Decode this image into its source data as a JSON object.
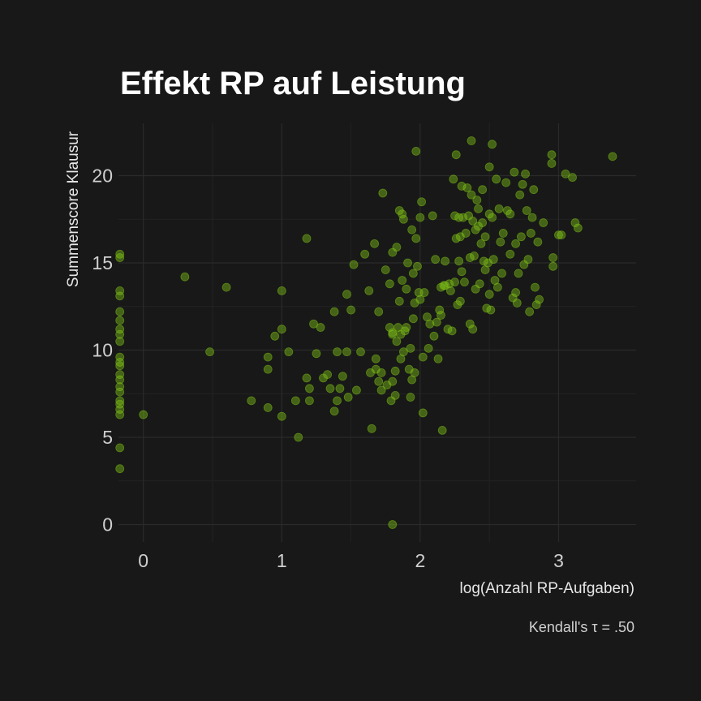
{
  "chart_data": {
    "type": "scatter",
    "title": "Effekt RP auf Leistung",
    "xlabel": "log(Anzahl RP-Aufgaben)",
    "ylabel": "Summenscore Klausur",
    "caption": "Kendall's τ = .50",
    "xlim": [
      -0.18,
      3.56
    ],
    "ylim": [
      -1.0,
      23.0
    ],
    "xticks": [
      0,
      1,
      2,
      3
    ],
    "yticks": [
      0,
      5,
      10,
      15,
      20
    ],
    "grid": true,
    "colors": {
      "background": "#181818",
      "point": "#7cbf16",
      "grid_major": "#2a2a2a",
      "grid_minor": "#222222"
    },
    "points": [
      [
        -0.17,
        15.5
      ],
      [
        -0.17,
        15.3
      ],
      [
        -0.17,
        13.4
      ],
      [
        -0.17,
        13.1
      ],
      [
        -0.17,
        12.2
      ],
      [
        -0.17,
        11.7
      ],
      [
        -0.17,
        11.2
      ],
      [
        -0.17,
        10.9
      ],
      [
        -0.17,
        10.5
      ],
      [
        -0.17,
        9.6
      ],
      [
        -0.17,
        9.3
      ],
      [
        -0.17,
        9.1
      ],
      [
        -0.17,
        8.6
      ],
      [
        -0.17,
        8.3
      ],
      [
        -0.17,
        7.9
      ],
      [
        -0.17,
        7.6
      ],
      [
        -0.17,
        7.1
      ],
      [
        -0.17,
        6.9
      ],
      [
        -0.17,
        6.6
      ],
      [
        -0.17,
        6.3
      ],
      [
        -0.17,
        4.4
      ],
      [
        -0.17,
        3.2
      ],
      [
        0.0,
        6.3
      ],
      [
        0.3,
        14.2
      ],
      [
        0.48,
        9.9
      ],
      [
        0.6,
        13.6
      ],
      [
        0.78,
        7.1
      ],
      [
        0.9,
        9.6
      ],
      [
        0.9,
        8.9
      ],
      [
        0.9,
        6.7
      ],
      [
        0.95,
        10.8
      ],
      [
        1.0,
        13.4
      ],
      [
        1.0,
        11.2
      ],
      [
        1.0,
        6.2
      ],
      [
        1.05,
        9.9
      ],
      [
        1.1,
        7.1
      ],
      [
        1.12,
        5.0
      ],
      [
        1.18,
        16.4
      ],
      [
        1.18,
        8.4
      ],
      [
        1.2,
        7.8
      ],
      [
        1.2,
        7.1
      ],
      [
        1.23,
        11.5
      ],
      [
        1.25,
        9.8
      ],
      [
        1.28,
        11.3
      ],
      [
        1.3,
        8.4
      ],
      [
        1.33,
        8.6
      ],
      [
        1.35,
        7.8
      ],
      [
        1.38,
        6.5
      ],
      [
        1.38,
        12.2
      ],
      [
        1.4,
        9.9
      ],
      [
        1.4,
        7.1
      ],
      [
        1.42,
        7.8
      ],
      [
        1.44,
        8.5
      ],
      [
        1.47,
        9.9
      ],
      [
        1.47,
        13.2
      ],
      [
        1.48,
        7.3
      ],
      [
        1.5,
        12.3
      ],
      [
        1.52,
        14.9
      ],
      [
        1.54,
        7.7
      ],
      [
        1.57,
        9.9
      ],
      [
        1.6,
        15.5
      ],
      [
        1.63,
        13.4
      ],
      [
        1.64,
        8.7
      ],
      [
        1.65,
        5.5
      ],
      [
        1.67,
        16.1
      ],
      [
        1.68,
        8.9
      ],
      [
        1.68,
        9.5
      ],
      [
        1.7,
        12.2
      ],
      [
        1.7,
        8.2
      ],
      [
        1.72,
        8.7
      ],
      [
        1.72,
        7.7
      ],
      [
        1.73,
        19.0
      ],
      [
        1.75,
        14.6
      ],
      [
        1.76,
        8.0
      ],
      [
        1.78,
        11.3
      ],
      [
        1.78,
        13.8
      ],
      [
        1.79,
        7.1
      ],
      [
        1.8,
        15.6
      ],
      [
        1.8,
        11.0
      ],
      [
        1.8,
        10.9
      ],
      [
        1.8,
        8.2
      ],
      [
        1.8,
        0.0
      ],
      [
        1.82,
        8.8
      ],
      [
        1.82,
        7.4
      ],
      [
        1.83,
        10.5
      ],
      [
        1.83,
        15.9
      ],
      [
        1.84,
        11.3
      ],
      [
        1.85,
        18.0
      ],
      [
        1.85,
        12.8
      ],
      [
        1.86,
        10.9
      ],
      [
        1.86,
        9.5
      ],
      [
        1.87,
        17.8
      ],
      [
        1.87,
        14.0
      ],
      [
        1.88,
        17.5
      ],
      [
        1.88,
        9.9
      ],
      [
        1.89,
        11.1
      ],
      [
        1.9,
        13.5
      ],
      [
        1.9,
        11.3
      ],
      [
        1.91,
        15.0
      ],
      [
        1.92,
        8.9
      ],
      [
        1.93,
        7.3
      ],
      [
        1.93,
        10.1
      ],
      [
        1.94,
        16.9
      ],
      [
        1.94,
        8.3
      ],
      [
        1.95,
        11.8
      ],
      [
        1.95,
        14.4
      ],
      [
        1.96,
        12.7
      ],
      [
        1.96,
        8.7
      ],
      [
        1.97,
        21.4
      ],
      [
        1.97,
        16.4
      ],
      [
        1.98,
        14.8
      ],
      [
        1.99,
        13.3
      ],
      [
        2.0,
        17.6
      ],
      [
        2.0,
        12.9
      ],
      [
        2.01,
        18.5
      ],
      [
        2.02,
        9.6
      ],
      [
        2.02,
        6.4
      ],
      [
        2.03,
        13.3
      ],
      [
        2.05,
        11.9
      ],
      [
        2.06,
        10.1
      ],
      [
        2.07,
        11.5
      ],
      [
        2.09,
        17.7
      ],
      [
        2.1,
        10.8
      ],
      [
        2.11,
        15.2
      ],
      [
        2.12,
        11.6
      ],
      [
        2.13,
        9.5
      ],
      [
        2.14,
        12.3
      ],
      [
        2.15,
        12.0
      ],
      [
        2.15,
        13.6
      ],
      [
        2.16,
        5.4
      ],
      [
        2.17,
        13.7
      ],
      [
        2.18,
        15.1
      ],
      [
        2.18,
        13.7
      ],
      [
        2.2,
        11.2
      ],
      [
        2.21,
        13.8
      ],
      [
        2.22,
        13.4
      ],
      [
        2.23,
        11.1
      ],
      [
        2.24,
        19.8
      ],
      [
        2.25,
        17.7
      ],
      [
        2.25,
        13.9
      ],
      [
        2.26,
        21.2
      ],
      [
        2.26,
        16.4
      ],
      [
        2.27,
        12.6
      ],
      [
        2.28,
        17.6
      ],
      [
        2.28,
        15.1
      ],
      [
        2.29,
        16.5
      ],
      [
        2.29,
        12.8
      ],
      [
        2.3,
        19.4
      ],
      [
        2.3,
        14.5
      ],
      [
        2.31,
        17.6
      ],
      [
        2.32,
        13.9
      ],
      [
        2.33,
        16.7
      ],
      [
        2.34,
        19.3
      ],
      [
        2.35,
        17.7
      ],
      [
        2.36,
        15.3
      ],
      [
        2.36,
        11.5
      ],
      [
        2.37,
        22.0
      ],
      [
        2.37,
        18.9
      ],
      [
        2.38,
        17.4
      ],
      [
        2.38,
        11.2
      ],
      [
        2.39,
        15.4
      ],
      [
        2.4,
        13.5
      ],
      [
        2.4,
        16.9
      ],
      [
        2.41,
        18.6
      ],
      [
        2.42,
        18.1
      ],
      [
        2.42,
        17.1
      ],
      [
        2.43,
        13.8
      ],
      [
        2.44,
        16.1
      ],
      [
        2.45,
        19.2
      ],
      [
        2.45,
        17.3
      ],
      [
        2.46,
        15.1
      ],
      [
        2.47,
        16.5
      ],
      [
        2.47,
        14.6
      ],
      [
        2.48,
        12.4
      ],
      [
        2.49,
        15.0
      ],
      [
        2.5,
        20.5
      ],
      [
        2.5,
        17.8
      ],
      [
        2.5,
        13.2
      ],
      [
        2.51,
        12.3
      ],
      [
        2.52,
        21.8
      ],
      [
        2.52,
        17.6
      ],
      [
        2.53,
        15.2
      ],
      [
        2.54,
        14.0
      ],
      [
        2.55,
        19.8
      ],
      [
        2.56,
        13.6
      ],
      [
        2.57,
        18.1
      ],
      [
        2.58,
        16.2
      ],
      [
        2.59,
        14.4
      ],
      [
        2.6,
        16.7
      ],
      [
        2.62,
        19.6
      ],
      [
        2.63,
        18.0
      ],
      [
        2.65,
        15.5
      ],
      [
        2.65,
        17.8
      ],
      [
        2.67,
        13.0
      ],
      [
        2.68,
        20.2
      ],
      [
        2.69,
        16.1
      ],
      [
        2.69,
        13.3
      ],
      [
        2.7,
        12.7
      ],
      [
        2.71,
        14.4
      ],
      [
        2.72,
        18.9
      ],
      [
        2.73,
        16.5
      ],
      [
        2.74,
        19.5
      ],
      [
        2.75,
        14.9
      ],
      [
        2.76,
        20.1
      ],
      [
        2.77,
        18.0
      ],
      [
        2.78,
        15.2
      ],
      [
        2.79,
        12.2
      ],
      [
        2.8,
        16.7
      ],
      [
        2.81,
        17.6
      ],
      [
        2.82,
        19.2
      ],
      [
        2.83,
        13.6
      ],
      [
        2.84,
        12.6
      ],
      [
        2.85,
        16.2
      ],
      [
        2.86,
        12.9
      ],
      [
        2.89,
        17.3
      ],
      [
        2.95,
        21.2
      ],
      [
        2.95,
        20.7
      ],
      [
        2.96,
        15.3
      ],
      [
        2.96,
        14.8
      ],
      [
        3.0,
        16.6
      ],
      [
        3.02,
        16.6
      ],
      [
        3.05,
        20.1
      ],
      [
        3.1,
        19.9
      ],
      [
        3.12,
        17.3
      ],
      [
        3.14,
        17.0
      ],
      [
        3.39,
        21.1
      ]
    ]
  }
}
